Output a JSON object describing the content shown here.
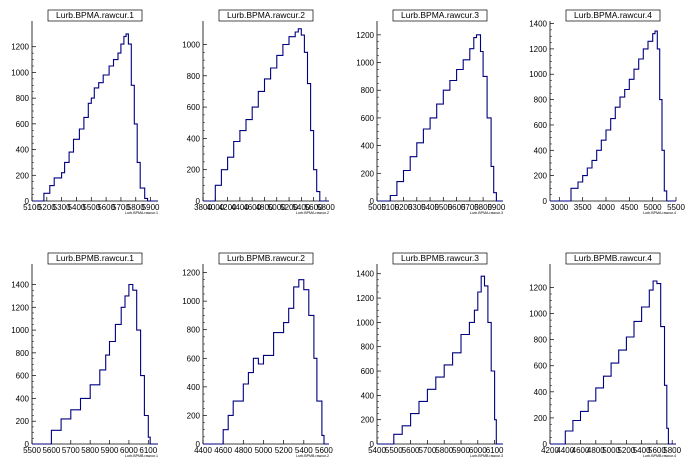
{
  "figure": {
    "background": "#ffffff",
    "line_color": "#000080",
    "axis_color": "#000000"
  },
  "chart_data": [
    {
      "type": "step-histogram",
      "title": "Lurb.BPMA.rawcur.1",
      "xlabel": "Lurb.BPMA.rawcur.1",
      "xlim": [
        5100,
        5950
      ],
      "ylim": [
        0,
        1400
      ],
      "xticks": [
        5100,
        5200,
        5300,
        5400,
        5500,
        5600,
        5700,
        5800,
        5900
      ],
      "yticks": [
        0,
        200,
        400,
        600,
        800,
        1000,
        1200
      ],
      "points": [
        [
          5100,
          0
        ],
        [
          5150,
          0
        ],
        [
          5180,
          60
        ],
        [
          5220,
          120
        ],
        [
          5250,
          180
        ],
        [
          5300,
          220
        ],
        [
          5320,
          300
        ],
        [
          5350,
          380
        ],
        [
          5380,
          480
        ],
        [
          5420,
          560
        ],
        [
          5450,
          650
        ],
        [
          5480,
          760
        ],
        [
          5500,
          800
        ],
        [
          5520,
          880
        ],
        [
          5550,
          920
        ],
        [
          5580,
          980
        ],
        [
          5620,
          1050
        ],
        [
          5650,
          1100
        ],
        [
          5680,
          1150
        ],
        [
          5700,
          1220
        ],
        [
          5720,
          1280
        ],
        [
          5735,
          1300
        ],
        [
          5750,
          1220
        ],
        [
          5770,
          900
        ],
        [
          5790,
          600
        ],
        [
          5810,
          300
        ],
        [
          5830,
          100
        ],
        [
          5860,
          20
        ],
        [
          5880,
          0
        ],
        [
          5950,
          0
        ]
      ]
    },
    {
      "type": "step-histogram",
      "title": "Lurb.BPMA.rawcur.2",
      "xlabel": "Lurb.BPMA.rawcur.2",
      "xlim": [
        3800,
        5850
      ],
      "ylim": [
        0,
        1150
      ],
      "xticks": [
        3800,
        4000,
        4200,
        4400,
        4600,
        4800,
        5000,
        5200,
        5400,
        5600,
        5800
      ],
      "yticks": [
        0,
        200,
        400,
        600,
        800,
        1000
      ],
      "points": [
        [
          3800,
          0
        ],
        [
          3950,
          0
        ],
        [
          4000,
          100
        ],
        [
          4100,
          200
        ],
        [
          4200,
          280
        ],
        [
          4300,
          380
        ],
        [
          4400,
          450
        ],
        [
          4500,
          520
        ],
        [
          4600,
          600
        ],
        [
          4700,
          700
        ],
        [
          4800,
          780
        ],
        [
          4900,
          850
        ],
        [
          5000,
          930
        ],
        [
          5100,
          1000
        ],
        [
          5200,
          1050
        ],
        [
          5300,
          1080
        ],
        [
          5350,
          1100
        ],
        [
          5400,
          1060
        ],
        [
          5450,
          950
        ],
        [
          5500,
          750
        ],
        [
          5550,
          450
        ],
        [
          5600,
          200
        ],
        [
          5650,
          60
        ],
        [
          5700,
          0
        ],
        [
          5850,
          0
        ]
      ]
    },
    {
      "type": "step-histogram",
      "title": "Lurb.BPMA.rawcur.3",
      "xlabel": "Lurb.BPMA.rawcur.3",
      "xlim": [
        5000,
        5950
      ],
      "ylim": [
        0,
        1300
      ],
      "xticks": [
        5000,
        5100,
        5200,
        5300,
        5400,
        5500,
        5600,
        5700,
        5800,
        5900
      ],
      "yticks": [
        0,
        200,
        400,
        600,
        800,
        1000,
        1200
      ],
      "points": [
        [
          5000,
          0
        ],
        [
          5080,
          0
        ],
        [
          5100,
          40
        ],
        [
          5150,
          140
        ],
        [
          5200,
          220
        ],
        [
          5250,
          320
        ],
        [
          5300,
          420
        ],
        [
          5350,
          520
        ],
        [
          5400,
          600
        ],
        [
          5450,
          700
        ],
        [
          5500,
          800
        ],
        [
          5550,
          870
        ],
        [
          5600,
          950
        ],
        [
          5650,
          1020
        ],
        [
          5700,
          1100
        ],
        [
          5730,
          1180
        ],
        [
          5750,
          1200
        ],
        [
          5780,
          1080
        ],
        [
          5800,
          900
        ],
        [
          5830,
          600
        ],
        [
          5860,
          250
        ],
        [
          5880,
          60
        ],
        [
          5900,
          0
        ],
        [
          5950,
          0
        ]
      ]
    },
    {
      "type": "step-histogram",
      "title": "Lurb.BPMA.rawcur.4",
      "xlabel": "Lurb.BPMA.rawcur.4",
      "xlim": [
        2800,
        5500
      ],
      "ylim": [
        0,
        1420
      ],
      "xticks": [
        3000,
        3500,
        4000,
        4500,
        5000,
        5500
      ],
      "yticks": [
        0,
        200,
        400,
        600,
        800,
        1000,
        1200,
        1400
      ],
      "points": [
        [
          2800,
          0
        ],
        [
          3150,
          0
        ],
        [
          3250,
          100
        ],
        [
          3400,
          150
        ],
        [
          3500,
          200
        ],
        [
          3600,
          260
        ],
        [
          3700,
          320
        ],
        [
          3800,
          400
        ],
        [
          3900,
          480
        ],
        [
          4000,
          560
        ],
        [
          4100,
          650
        ],
        [
          4200,
          740
        ],
        [
          4300,
          820
        ],
        [
          4400,
          880
        ],
        [
          4500,
          960
        ],
        [
          4600,
          1040
        ],
        [
          4700,
          1120
        ],
        [
          4800,
          1200
        ],
        [
          4900,
          1260
        ],
        [
          5000,
          1320
        ],
        [
          5050,
          1340
        ],
        [
          5100,
          1200
        ],
        [
          5150,
          800
        ],
        [
          5200,
          400
        ],
        [
          5250,
          80
        ],
        [
          5300,
          0
        ],
        [
          5500,
          0
        ]
      ]
    },
    {
      "type": "step-histogram",
      "title": "Lurb.BPMB.rawcur.1",
      "xlabel": "Lurb.BPMB.rawcur.1",
      "xlim": [
        5500,
        6150
      ],
      "ylim": [
        0,
        1580
      ],
      "xticks": [
        5500,
        5600,
        5700,
        5800,
        5900,
        6000,
        6100
      ],
      "yticks": [
        0,
        200,
        400,
        600,
        800,
        1000,
        1200,
        1400
      ],
      "points": [
        [
          5500,
          0
        ],
        [
          5560,
          0
        ],
        [
          5600,
          120
        ],
        [
          5650,
          220
        ],
        [
          5700,
          300
        ],
        [
          5750,
          400
        ],
        [
          5800,
          520
        ],
        [
          5850,
          650
        ],
        [
          5880,
          780
        ],
        [
          5900,
          900
        ],
        [
          5930,
          1050
        ],
        [
          5960,
          1200
        ],
        [
          5980,
          1300
        ],
        [
          6000,
          1400
        ],
        [
          6020,
          1350
        ],
        [
          6040,
          1000
        ],
        [
          6060,
          600
        ],
        [
          6080,
          250
        ],
        [
          6100,
          60
        ],
        [
          6110,
          0
        ],
        [
          6150,
          0
        ]
      ]
    },
    {
      "type": "step-histogram",
      "title": "Lurb.BPMB.rawcur.2",
      "xlabel": "Lurb.BPMB.rawcur.2",
      "xlim": [
        4400,
        5650
      ],
      "ylim": [
        0,
        1260
      ],
      "xticks": [
        4400,
        4600,
        4800,
        5000,
        5200,
        5400,
        5600
      ],
      "yticks": [
        0,
        200,
        400,
        600,
        800,
        1000,
        1200
      ],
      "points": [
        [
          4400,
          0
        ],
        [
          4560,
          0
        ],
        [
          4600,
          100
        ],
        [
          4650,
          200
        ],
        [
          4700,
          300
        ],
        [
          4800,
          420
        ],
        [
          4850,
          500
        ],
        [
          4900,
          600
        ],
        [
          4950,
          560
        ],
        [
          5000,
          620
        ],
        [
          5100,
          780
        ],
        [
          5200,
          850
        ],
        [
          5250,
          950
        ],
        [
          5300,
          1100
        ],
        [
          5350,
          1150
        ],
        [
          5400,
          1080
        ],
        [
          5450,
          900
        ],
        [
          5500,
          600
        ],
        [
          5530,
          300
        ],
        [
          5580,
          60
        ],
        [
          5600,
          0
        ],
        [
          5650,
          0
        ]
      ]
    },
    {
      "type": "step-histogram",
      "title": "Lurb.BPMB.rawcur.3",
      "xlabel": "Lurb.BPMB.rawcur.3",
      "xlim": [
        5400,
        6150
      ],
      "ylim": [
        0,
        1480
      ],
      "xticks": [
        5400,
        5500,
        5600,
        5700,
        5800,
        5900,
        6000,
        6100
      ],
      "yticks": [
        0,
        200,
        400,
        600,
        800,
        1000,
        1200,
        1400
      ],
      "points": [
        [
          5400,
          0
        ],
        [
          5480,
          0
        ],
        [
          5500,
          80
        ],
        [
          5550,
          150
        ],
        [
          5600,
          250
        ],
        [
          5650,
          350
        ],
        [
          5700,
          450
        ],
        [
          5750,
          550
        ],
        [
          5800,
          650
        ],
        [
          5850,
          750
        ],
        [
          5900,
          900
        ],
        [
          5950,
          1000
        ],
        [
          5980,
          1100
        ],
        [
          6000,
          1250
        ],
        [
          6020,
          1380
        ],
        [
          6040,
          1300
        ],
        [
          6060,
          1000
        ],
        [
          6080,
          600
        ],
        [
          6100,
          200
        ],
        [
          6110,
          0
        ],
        [
          6150,
          0
        ]
      ]
    },
    {
      "type": "step-histogram",
      "title": "Lurb.BPMB.rawcur.4",
      "xlabel": "Lurb.BPMB.rawcur.4",
      "xlim": [
        4200,
        5850
      ],
      "ylim": [
        0,
        1380
      ],
      "xticks": [
        4200,
        4400,
        4600,
        4800,
        5000,
        5200,
        5400,
        5600,
        5800
      ],
      "yticks": [
        0,
        200,
        400,
        600,
        800,
        1000,
        1200
      ],
      "points": [
        [
          4200,
          0
        ],
        [
          4330,
          0
        ],
        [
          4400,
          100
        ],
        [
          4500,
          180
        ],
        [
          4600,
          250
        ],
        [
          4700,
          330
        ],
        [
          4800,
          430
        ],
        [
          4900,
          520
        ],
        [
          5000,
          620
        ],
        [
          5100,
          720
        ],
        [
          5200,
          820
        ],
        [
          5300,
          940
        ],
        [
          5400,
          1050
        ],
        [
          5500,
          1180
        ],
        [
          5550,
          1250
        ],
        [
          5600,
          1230
        ],
        [
          5650,
          900
        ],
        [
          5700,
          450
        ],
        [
          5730,
          120
        ],
        [
          5750,
          0
        ],
        [
          5850,
          0
        ]
      ]
    }
  ]
}
